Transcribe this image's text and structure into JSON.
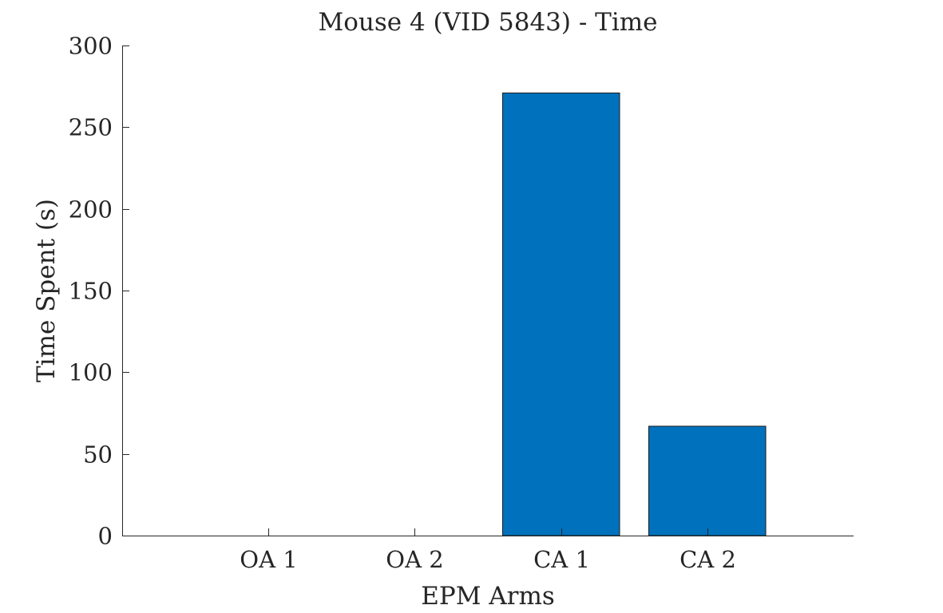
{
  "chart_data": {
    "type": "bar",
    "title": "Mouse 4 (VID 5843) - Time",
    "xlabel": "EPM Arms",
    "ylabel": "Time Spent (s)",
    "categories": [
      "OA 1",
      "OA 2",
      "CA 1",
      "CA 2"
    ],
    "values": [
      0,
      0,
      271,
      67
    ],
    "ylim": [
      0,
      300
    ],
    "yticks": [
      "0",
      "50",
      "100",
      "150",
      "200",
      "250",
      "300"
    ],
    "bar_color": "#0072BD",
    "grid": false,
    "legend": "none"
  }
}
